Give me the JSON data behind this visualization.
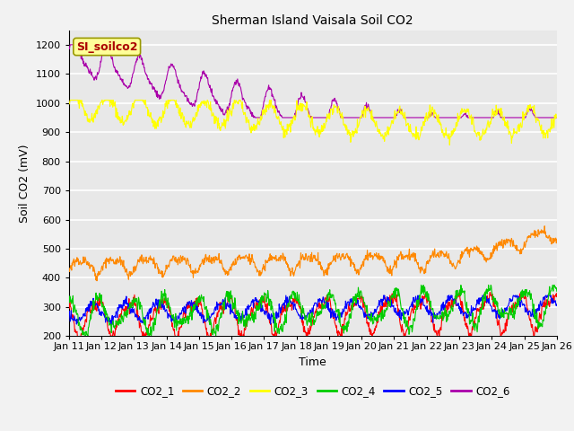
{
  "title": "Sherman Island Vaisala Soil CO2",
  "xlabel": "Time",
  "ylabel": "Soil CO2 (mV)",
  "ylim": [
    200,
    1250
  ],
  "yticks": [
    200,
    300,
    400,
    500,
    600,
    700,
    800,
    900,
    1000,
    1100,
    1200
  ],
  "xtick_labels": [
    "Jan 11",
    "Jan 12",
    "Jan 13",
    "Jan 14",
    "Jan 15",
    "Jan 16",
    "Jan 17",
    "Jan 18",
    "Jan 19",
    "Jan 20",
    "Jan 21",
    "Jan 22",
    "Jan 23",
    "Jan 24",
    "Jan 25",
    "Jan 26"
  ],
  "legend_label": "SI_soilco2",
  "legend_label_color": "#aa0000",
  "legend_box_color": "#ffff99",
  "legend_box_edge": "#999900",
  "series_colors": {
    "CO2_1": "#ff0000",
    "CO2_2": "#ff8800",
    "CO2_3": "#ffff00",
    "CO2_4": "#00cc00",
    "CO2_5": "#0000ff",
    "CO2_6": "#aa00aa"
  },
  "bg_color": "#e8e8e8",
  "grid_color": "#ffffff",
  "fig_bg": "#f2f2f2",
  "line_width": 0.8
}
